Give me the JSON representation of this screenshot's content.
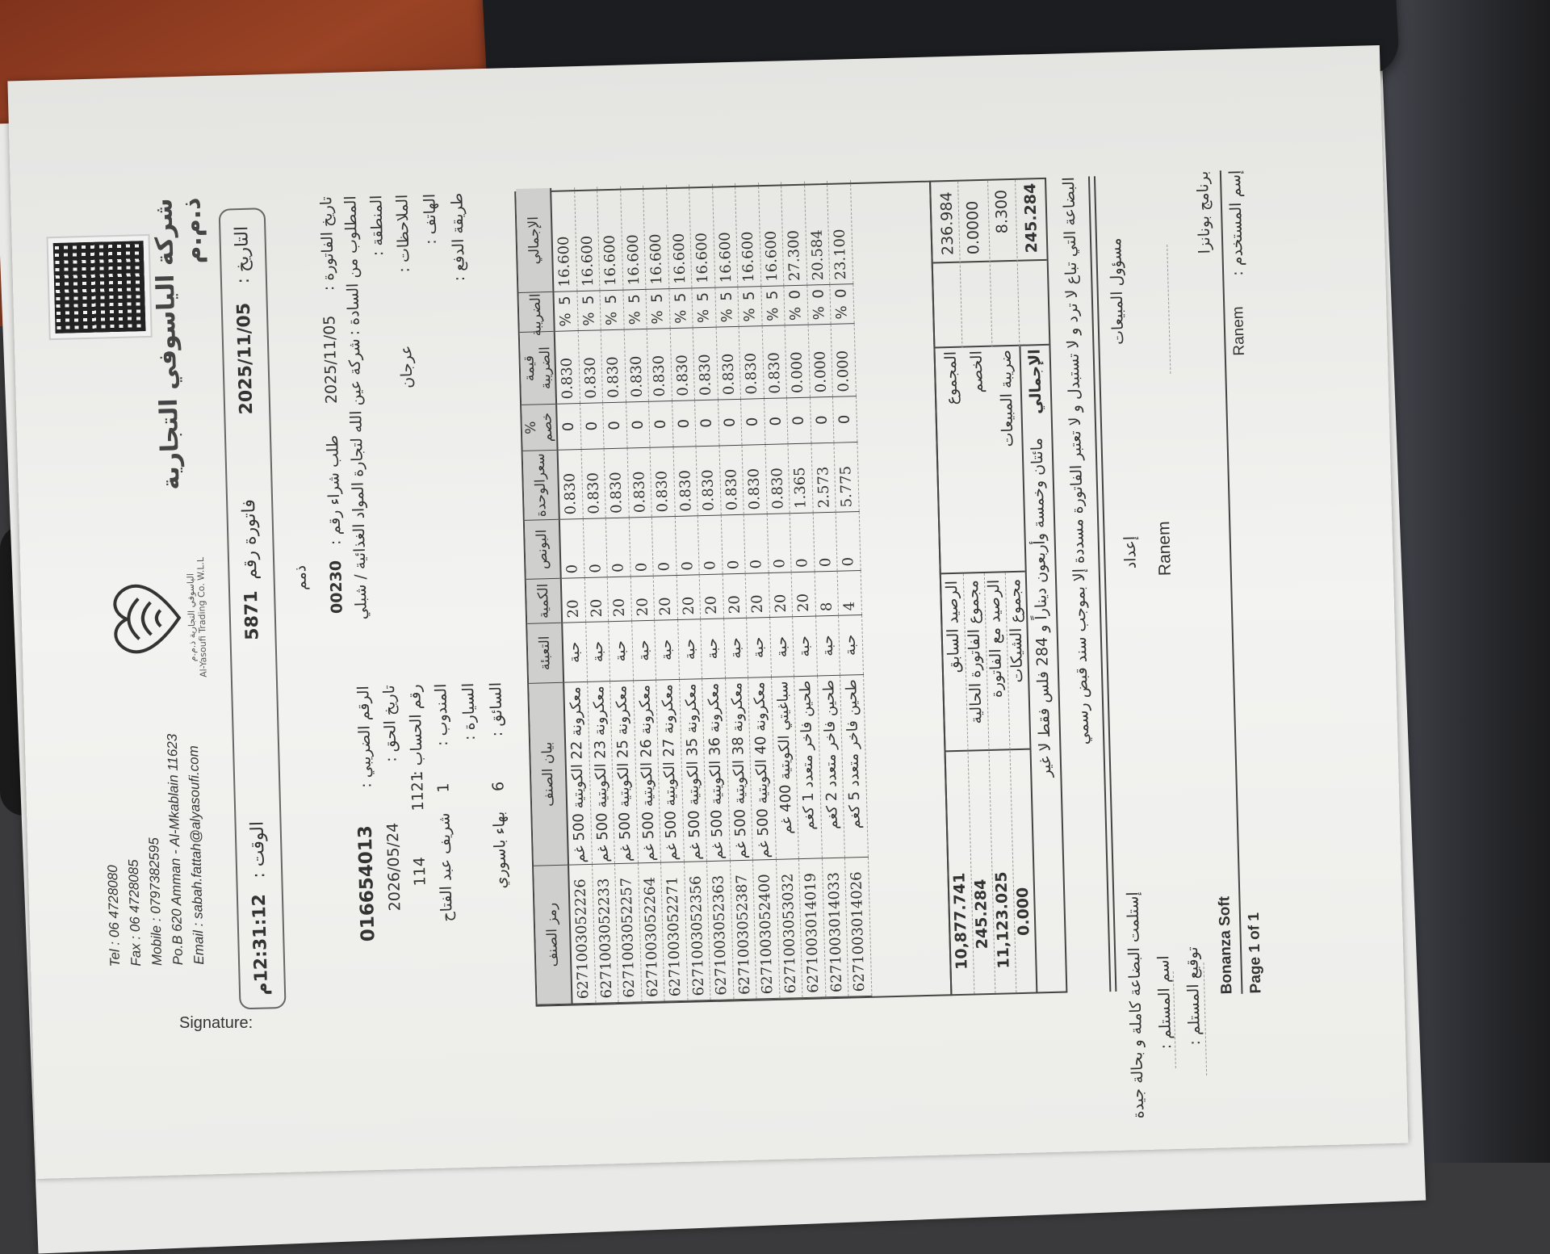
{
  "background": {
    "signature_label": "Signature:"
  },
  "header": {
    "company_name": "شركة الياسوفي التجارية ذ.م.م",
    "logo_text_ar": "الياسوفي التجارية ذ.م.م",
    "logo_text_en": "Al-Yasoufi Trading Co. W.L.L",
    "contact": {
      "tel": "Tel : 06 4728080",
      "fax": "Fax : 06 4728085",
      "mobile": "Mobile : 0797382595",
      "pobox": "Po.B 620 Amman - Al-Mkablain 11623",
      "email": "Email : sabah.fattah@alyasoufi.com"
    }
  },
  "datebox": {
    "date_label": "التاريخ :",
    "date": "2025/11/05",
    "invoice_label": "فاتورة رقم",
    "invoice_no": "5871",
    "time_label": "الوقت :",
    "time": "12:31:12م"
  },
  "info": {
    "payment_type": "ذمم",
    "invoice_date_label": "تاريخ الفاتورة :",
    "invoice_date": "2025/11/05",
    "customer_label": "المطلوب من السادة :",
    "customer": "شركة عين الله لتجارة المواد الغذائية / شبلي",
    "region_label": "المنطقة :",
    "notes_label": "الملاحظات :",
    "notes": "عرجان",
    "phone_label": "الهاتف :",
    "payment_method_label": "طريقة الدفع :",
    "po_label": "طلب شراء رقم :",
    "po_no": "00230",
    "tax_no_label": "الرقم الضريبي :",
    "tax_no": "016654013",
    "due_date_label": "تاريخ الحق :",
    "due_date": "2026/05/24",
    "account_label": "رقم الحساب :",
    "account_no": "1121",
    "account_extra": "114",
    "rep_label": "المندوب :",
    "rep_no": "1",
    "rep_name": "شريف عبد الفتاح",
    "car_label": "السيارة :",
    "driver_label": "السائق :",
    "driver_no": "6",
    "driver_name": "بهاء باسوري"
  },
  "table": {
    "columns": [
      "الإجمالي",
      "الضريبة",
      "قيمة الضريبة",
      "% خصم",
      "سعرالوحدة",
      "البونص",
      "الكمية",
      "التعبئة",
      "بيان الصنف",
      "رمز الصنف"
    ],
    "percent_sign": "%",
    "rows": [
      {
        "code": "6271003052226",
        "desc": "معكرونة 22 الكويتية 500 غم",
        "pack": "حبة",
        "qty": "20",
        "bonus": "0",
        "price": "0.830",
        "disc": "0",
        "tax_value": "0.830",
        "tax_pct": "5",
        "total": "16.600"
      },
      {
        "code": "6271003052233",
        "desc": "معكرونة 23 الكويتية 500 غم",
        "pack": "حبة",
        "qty": "20",
        "bonus": "0",
        "price": "0.830",
        "disc": "0",
        "tax_value": "0.830",
        "tax_pct": "5",
        "total": "16.600"
      },
      {
        "code": "6271003052257",
        "desc": "معكرونة 25 الكويتية 500 غم",
        "pack": "حبة",
        "qty": "20",
        "bonus": "0",
        "price": "0.830",
        "disc": "0",
        "tax_value": "0.830",
        "tax_pct": "5",
        "total": "16.600"
      },
      {
        "code": "6271003052264",
        "desc": "معكرونة 26 الكويتية 500 غم",
        "pack": "حبة",
        "qty": "20",
        "bonus": "0",
        "price": "0.830",
        "disc": "0",
        "tax_value": "0.830",
        "tax_pct": "5",
        "total": "16.600"
      },
      {
        "code": "6271003052271",
        "desc": "معكرونة 27 الكويتية 500 غم",
        "pack": "حبة",
        "qty": "20",
        "bonus": "0",
        "price": "0.830",
        "disc": "0",
        "tax_value": "0.830",
        "tax_pct": "5",
        "total": "16.600"
      },
      {
        "code": "6271003052356",
        "desc": "معكرونة 35 الكويتية 500 غم",
        "pack": "حبة",
        "qty": "20",
        "bonus": "0",
        "price": "0.830",
        "disc": "0",
        "tax_value": "0.830",
        "tax_pct": "5",
        "total": "16.600"
      },
      {
        "code": "6271003052363",
        "desc": "معكرونة 36 الكويتية 500 غم",
        "pack": "حبة",
        "qty": "20",
        "bonus": "0",
        "price": "0.830",
        "disc": "0",
        "tax_value": "0.830",
        "tax_pct": "5",
        "total": "16.600"
      },
      {
        "code": "6271003052387",
        "desc": "معكرونة 38 الكويتية 500 غم",
        "pack": "حبة",
        "qty": "20",
        "bonus": "0",
        "price": "0.830",
        "disc": "0",
        "tax_value": "0.830",
        "tax_pct": "5",
        "total": "16.600"
      },
      {
        "code": "6271003052400",
        "desc": "معكرونة 40 الكويتية 500 غم",
        "pack": "حبة",
        "qty": "20",
        "bonus": "0",
        "price": "0.830",
        "disc": "0",
        "tax_value": "0.830",
        "tax_pct": "5",
        "total": "16.600"
      },
      {
        "code": "6271003053032",
        "desc": "سباغيتي الكويتية 400 غم",
        "pack": "حبة",
        "qty": "20",
        "bonus": "0",
        "price": "0.830",
        "disc": "0",
        "tax_value": "0.830",
        "tax_pct": "5",
        "total": "16.600"
      },
      {
        "code": "6271003014019",
        "desc": "طحين فاخر متعدد 1 كغم",
        "pack": "حبة",
        "qty": "20",
        "bonus": "0",
        "price": "1.365",
        "disc": "0",
        "tax_value": "0.000",
        "tax_pct": "0",
        "total": "27.300"
      },
      {
        "code": "6271003014033",
        "desc": "طحين فاخر متعدد 2 كغم",
        "pack": "حبة",
        "qty": "8",
        "bonus": "0",
        "price": "2.573",
        "disc": "0",
        "tax_value": "0.000",
        "tax_pct": "0",
        "total": "20.584"
      },
      {
        "code": "6271003014026",
        "desc": "طحين فاخر متعدد 5 كغم",
        "pack": "حبة",
        "qty": "4",
        "bonus": "0",
        "price": "5.775",
        "disc": "0",
        "tax_value": "0.000",
        "tax_pct": "0",
        "total": "23.100"
      }
    ]
  },
  "totals": {
    "subtotal_label": "المجموع",
    "subtotal": "236.984",
    "discount_label": "الخصم",
    "discount": "0.0000",
    "sales_tax_label": "ضريبة المبيعات",
    "sales_tax": "8.300",
    "grand_total_label": "الإجمالي",
    "grand_total": "245.284",
    "amount_words": "مائتان وخمسة وأربعون ديناراً و 284 فلس فقط لا غير",
    "prev_balance_label": "الرصيد السابق",
    "prev_balance": "10,877.741",
    "current_invoice_label": "مجموع الفاتورة الحالية",
    "current_invoice": "245.284",
    "balance_with_invoice_label": "الرصيد مع الفاتورة",
    "balance_with_invoice": "11,123.025",
    "cheques_label": "مجموع الشيكات",
    "cheques": "0.000"
  },
  "note": "البضاعة التي تباع لا ترد و لا تستبدل و لا تعتبر الفاتورة مسددة إلا بموجب سند قبض رسمي",
  "signatures": {
    "sales_manager_label": "مسؤول المبيعات",
    "prepared_label": "إعداد",
    "prepared_by": "Ranem",
    "received_statement": "إستلمت البضاعة كاملة و بحالة جيدة",
    "receiver_name_label": "اسم المستلم :",
    "receiver_signature_label": "توقيع المستلم :"
  },
  "footer": {
    "software_ar": "برنامج بونانزا",
    "software_en": "Bonanza Soft",
    "user_label": "إسم المستخدم :",
    "user": "Ranem",
    "page": "Page 1 of 1"
  }
}
